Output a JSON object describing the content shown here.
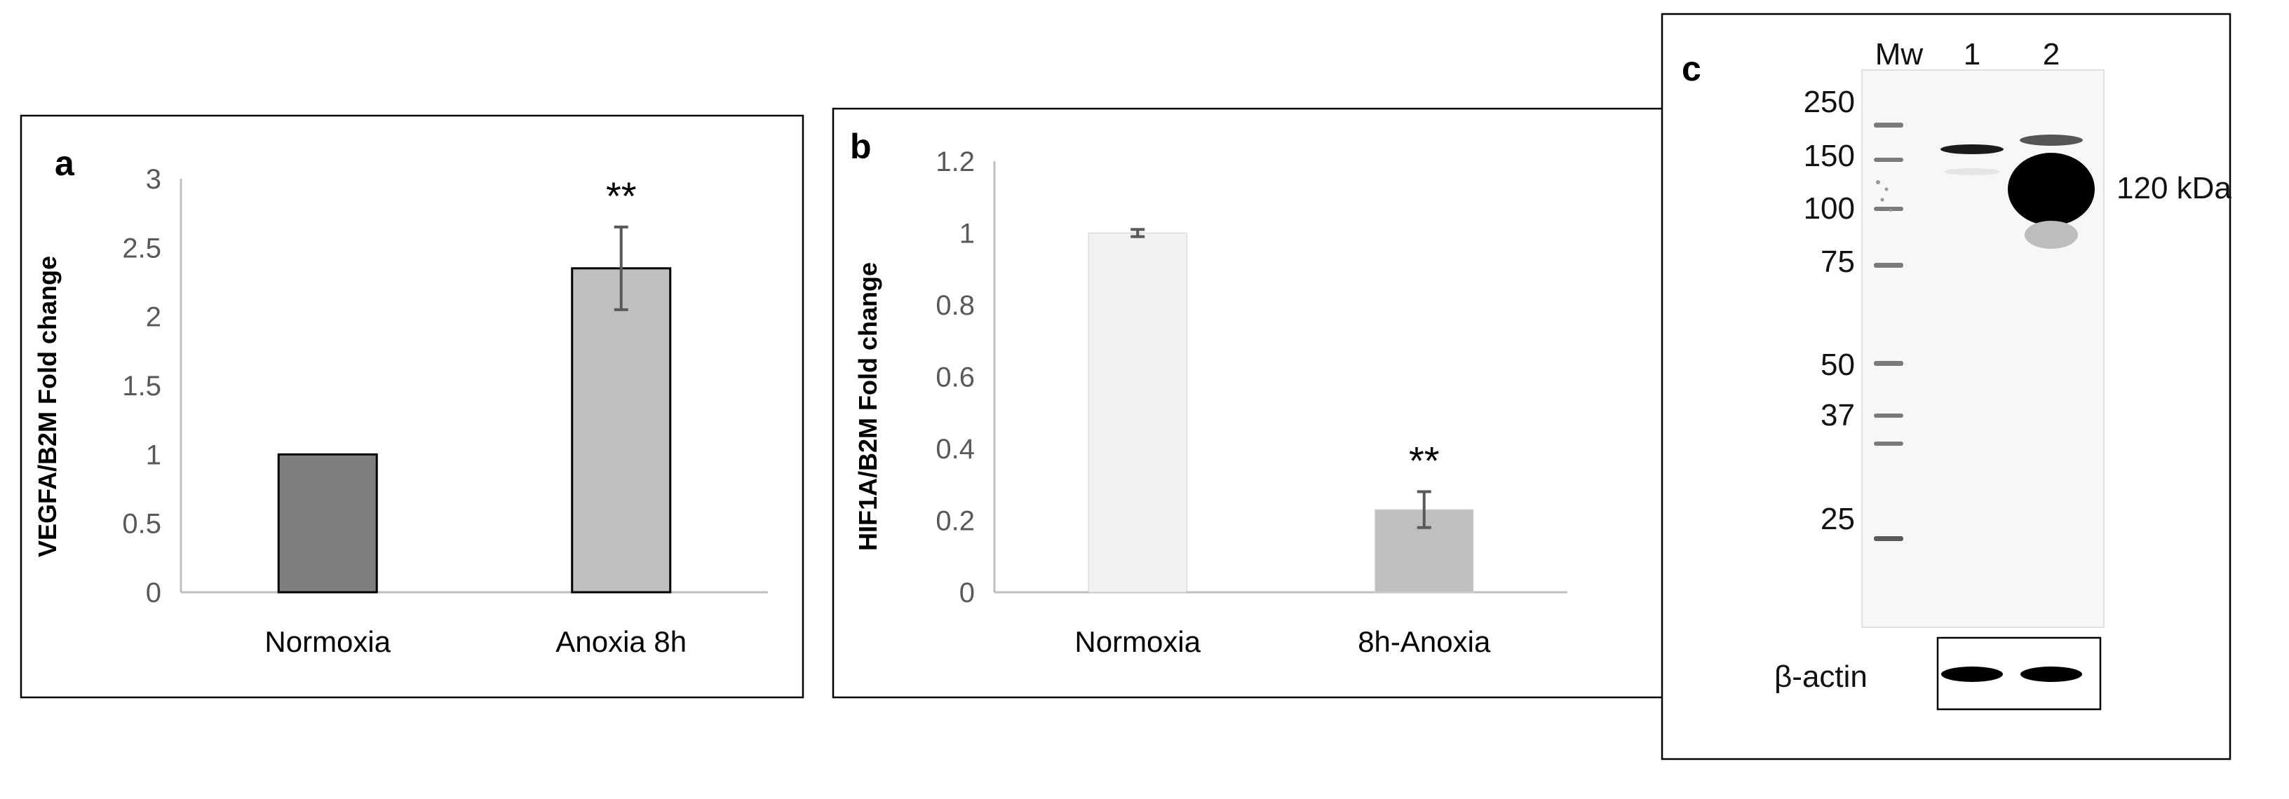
{
  "chart_data": [
    {
      "type": "bar",
      "panel": "a",
      "categories": [
        "Normoxia",
        "Anoxia 8h"
      ],
      "values": [
        1.0,
        2.35
      ],
      "errors": [
        0.0,
        0.3
      ],
      "significance": [
        "",
        "**"
      ],
      "colors": [
        "#7f7f7f",
        "#bfbfbf"
      ],
      "ylabel": "VEGFA/B2M Fold change",
      "xlabel": "",
      "ylim": [
        0,
        3
      ],
      "yticks": [
        0,
        0.5,
        1,
        1.5,
        2,
        2.5,
        3
      ]
    },
    {
      "type": "bar",
      "panel": "b",
      "categories": [
        "Normoxia",
        "8h-Anoxia"
      ],
      "values": [
        1.0,
        0.23
      ],
      "errors": [
        0.01,
        0.05
      ],
      "significance": [
        "",
        "**"
      ],
      "colors": [
        "#f2f2f2",
        "#bfbfbf"
      ],
      "ylabel": "HIF1A/B2M Fold change",
      "xlabel": "",
      "ylim": [
        0,
        1.2
      ],
      "yticks": [
        0,
        0.2,
        0.4,
        0.6,
        0.8,
        1,
        1.2
      ]
    }
  ],
  "blot": {
    "panel": "c",
    "lane_headers": [
      "Mw",
      "1",
      "2"
    ],
    "mw_markers": [
      "250",
      "150",
      "100",
      "75",
      "50",
      "37",
      "25"
    ],
    "band_label": "120 kDa",
    "loading_control": "β-actin"
  }
}
